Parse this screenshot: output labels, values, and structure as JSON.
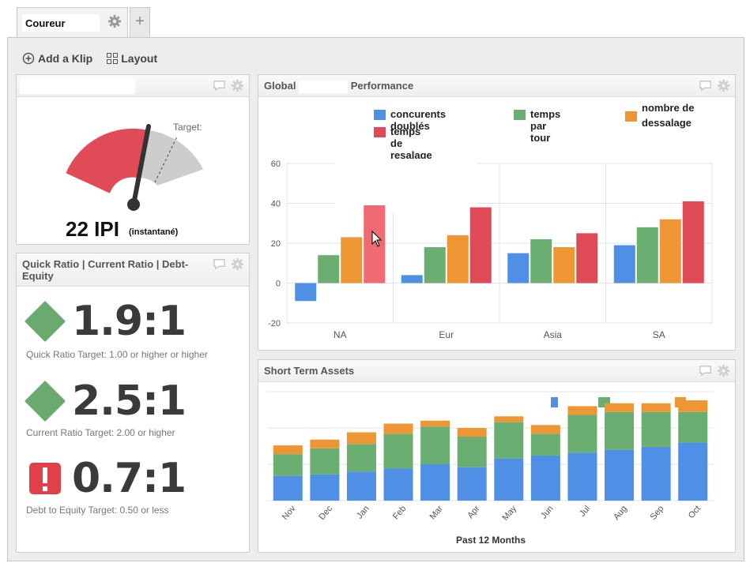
{
  "tabs": [
    {
      "label": "Coureur"
    }
  ],
  "toolbar": {
    "add_klip": "Add a Klip",
    "layout": "Layout"
  },
  "gauge": {
    "target_label": "Target:",
    "value_text": "22 IPI",
    "unit_note": "(instantané)"
  },
  "ratios": {
    "title": "Quick Ratio | Current Ratio | Debt-Equity",
    "items": [
      {
        "value": "1.9:1",
        "caption": "Quick Ratio Target: 1.00 or higher or higher",
        "status": "ok",
        "color": "#6aaa6e"
      },
      {
        "value": "2.5:1",
        "caption": "Current Ratio Target: 2.00 or higher",
        "status": "ok",
        "color": "#6aaa6e"
      },
      {
        "value": "0.7:1",
        "caption": "Debt to Equity Target: 0.50 or less",
        "status": "alert",
        "color": "#e04048"
      }
    ]
  },
  "performance": {
    "title_a": "Global",
    "title_b": "Performance"
  },
  "assets": {
    "title": "Short Term Assets"
  },
  "chart_data": [
    {
      "type": "bar",
      "title": "Global Performance",
      "categories": [
        "NA",
        "Eur",
        "Asia",
        "SA"
      ],
      "ylim": [
        -20,
        60
      ],
      "yticks": [
        "60",
        "40",
        "20",
        "0",
        "-20"
      ],
      "grid": true,
      "legend_position": "top",
      "series": [
        {
          "name": "concurents doublés",
          "color": "#4f8fe6",
          "values": [
            -9,
            4,
            15,
            19
          ]
        },
        {
          "name": "temps par tour",
          "color": "#6aae72",
          "values": [
            14,
            18,
            22,
            28
          ]
        },
        {
          "name": "nombre de dessalage",
          "color": "#ee9534",
          "values": [
            23,
            24,
            18,
            32
          ]
        },
        {
          "name": "temps de resalage",
          "color": "#e04a56",
          "values": [
            39,
            38,
            25,
            41
          ]
        }
      ]
    },
    {
      "type": "bar",
      "stacked": true,
      "title": "Short Term Assets",
      "xlabel": "Past 12 Months",
      "categories": [
        "Nov",
        "Dec",
        "Jan",
        "Feb",
        "Mar",
        "Apr",
        "May",
        "Jun",
        "Jul",
        "Aug",
        "Sep",
        "Oct"
      ],
      "legend_position": "top-right",
      "series": [
        {
          "color": "#4f8fe6",
          "values": [
            17,
            18,
            20,
            22,
            25,
            23,
            29,
            31,
            33,
            35,
            37,
            40
          ]
        },
        {
          "color": "#6aae72",
          "values": [
            15,
            18,
            19,
            24,
            26,
            21,
            25,
            15,
            26,
            26,
            24,
            21
          ]
        },
        {
          "color": "#ee9534",
          "values": [
            6,
            6,
            8,
            7,
            4,
            6,
            4,
            6,
            6,
            6,
            6,
            8
          ]
        }
      ]
    }
  ]
}
